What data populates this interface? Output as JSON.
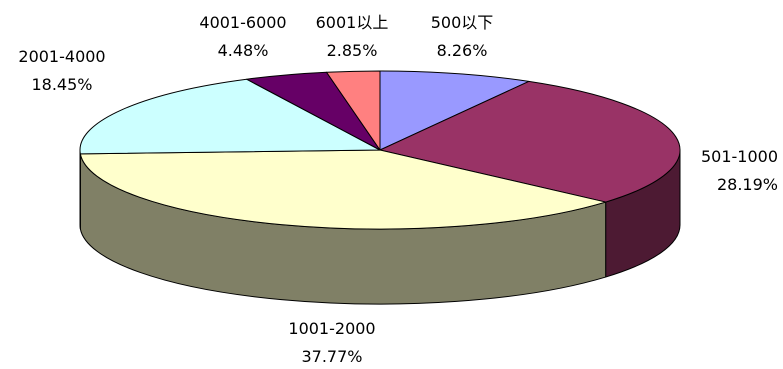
{
  "chart_data": {
    "type": "pie",
    "style": "3d-exploded-none",
    "categories": [
      "500以下",
      "501-1000",
      "1001-2000",
      "2001-4000",
      "4001-6000",
      "6001以上"
    ],
    "values": [
      8.26,
      28.19,
      37.77,
      18.45,
      4.48,
      2.85
    ],
    "value_labels": [
      "8.26%",
      "28.19%",
      "37.77%",
      "18.45%",
      "4.48%",
      "2.85%"
    ],
    "colors": [
      "#9999FF",
      "#993366",
      "#FFFFCC",
      "#CCFFFF",
      "#660066",
      "#FF8080"
    ],
    "start": "12 o'clock, clockwise",
    "legend": "none",
    "title": ""
  }
}
